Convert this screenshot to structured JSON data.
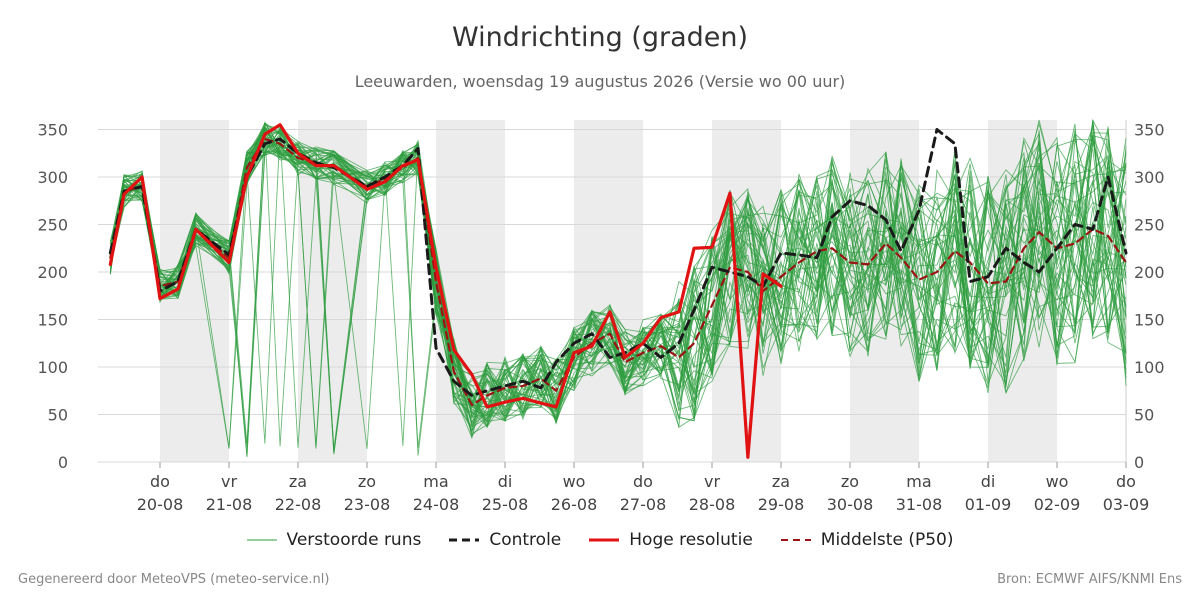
{
  "chart_data": {
    "type": "line",
    "title": "Windrichting (graden)",
    "subtitle": "Leeuwarden, woensdag 19 augustus 2026 (Versie wo 00 uur)",
    "y_ticks": [
      0,
      50,
      100,
      150,
      200,
      250,
      300,
      350
    ],
    "ylim": [
      0,
      350
    ],
    "x_day_ticks": [
      {
        "day": "do",
        "date": "20-08"
      },
      {
        "day": "vr",
        "date": "21-08"
      },
      {
        "day": "za",
        "date": "22-08"
      },
      {
        "day": "zo",
        "date": "23-08"
      },
      {
        "day": "ma",
        "date": "24-08"
      },
      {
        "day": "di",
        "date": "25-08"
      },
      {
        "day": "wo",
        "date": "26-08"
      },
      {
        "day": "do",
        "date": "27-08"
      },
      {
        "day": "vr",
        "date": "28-08"
      },
      {
        "day": "za",
        "date": "29-08"
      },
      {
        "day": "zo",
        "date": "30-08"
      },
      {
        "day": "ma",
        "date": "31-08"
      },
      {
        "day": "di",
        "date": "01-09"
      },
      {
        "day": "wo",
        "date": "02-09"
      },
      {
        "day": "do",
        "date": "03-09"
      }
    ],
    "series": [
      {
        "name": "Controle",
        "color": "#1a1a1a",
        "style": "dashed",
        "x": [
          -0.72,
          -0.52,
          -0.26,
          0,
          0.26,
          0.52,
          1,
          1.26,
          1.52,
          1.74,
          2,
          2.26,
          2.52,
          3,
          3.26,
          3.52,
          3.74,
          4,
          4.26,
          4.52,
          4.74,
          5,
          5.26,
          5.52,
          5.74,
          6,
          6.26,
          6.52,
          6.74,
          7,
          7.26,
          7.52,
          7.74,
          8,
          8.26,
          8.52,
          8.74,
          9,
          9.26,
          9.52,
          9.74,
          10,
          10.26,
          10.52,
          10.74,
          11,
          11.26,
          11.52,
          11.74,
          12,
          12.26,
          12.52,
          12.74,
          13,
          13.26,
          13.52,
          13.74,
          14
        ],
        "values": [
          220,
          285,
          290,
          180,
          190,
          245,
          218,
          300,
          335,
          340,
          325,
          315,
          310,
          290,
          300,
          312,
          330,
          120,
          85,
          70,
          75,
          80,
          85,
          78,
          105,
          125,
          135,
          110,
          115,
          125,
          110,
          125,
          160,
          205,
          200,
          195,
          185,
          220,
          218,
          215,
          258,
          275,
          270,
          255,
          222,
          265,
          350,
          335,
          190,
          195,
          225,
          210,
          200,
          225,
          250,
          245,
          300,
          220
        ],
        "values_note": ""
      },
      {
        "name": "Hoge resolutie",
        "color": "#e11212",
        "style": "solid",
        "x": [
          -0.72,
          -0.52,
          -0.26,
          0,
          0.26,
          0.52,
          1,
          1.26,
          1.52,
          1.74,
          2,
          2.26,
          2.52,
          3,
          3.26,
          3.52,
          3.74,
          4,
          4.26,
          4.52,
          4.74,
          5,
          5.26,
          5.52,
          5.74,
          6,
          6.26,
          6.52,
          6.74,
          7,
          7.26,
          7.52,
          7.74,
          8,
          8.26,
          8.52,
          8.74,
          9
        ],
        "values": [
          208,
          282,
          300,
          172,
          182,
          245,
          210,
          300,
          345,
          355,
          325,
          312,
          312,
          287,
          295,
          312,
          318,
          205,
          118,
          92,
          58,
          63,
          67,
          62,
          58,
          115,
          122,
          158,
          110,
          125,
          152,
          158,
          225,
          226,
          283,
          5,
          198,
          185
        ]
      },
      {
        "name": "Middelste (P50)",
        "color": "#9b1414",
        "style": "dashed",
        "x": [
          -0.72,
          -0.52,
          -0.26,
          0,
          0.26,
          0.52,
          1,
          1.26,
          1.52,
          1.74,
          2,
          2.26,
          2.52,
          3,
          3.26,
          3.52,
          3.74,
          4,
          4.26,
          4.52,
          4.74,
          5,
          5.26,
          5.52,
          5.74,
          6,
          6.26,
          6.52,
          6.74,
          7,
          7.26,
          7.52,
          7.74,
          8,
          8.26,
          8.52,
          8.74,
          9,
          9.26,
          9.52,
          9.74,
          10,
          10.26,
          10.52,
          10.74,
          11,
          11.26,
          11.52,
          11.74,
          12,
          12.26,
          12.52,
          12.74,
          13,
          13.26,
          13.52,
          13.74,
          14
        ],
        "values": [
          215,
          285,
          290,
          185,
          190,
          245,
          215,
          310,
          340,
          335,
          320,
          315,
          310,
          290,
          298,
          310,
          320,
          190,
          95,
          60,
          70,
          78,
          80,
          88,
          75,
          110,
          125,
          135,
          105,
          115,
          122,
          110,
          125,
          165,
          205,
          200,
          180,
          195,
          210,
          222,
          225,
          210,
          208,
          230,
          215,
          192,
          200,
          222,
          210,
          188,
          190,
          225,
          242,
          225,
          230,
          245,
          238,
          210
        ]
      },
      {
        "name": "Verstoorde runs",
        "color": "#2e9c3e",
        "style": "thin",
        "members": 50
      }
    ],
    "legend": [
      {
        "label": "Verstoorde runs",
        "color": "#2e9c3e",
        "style": "thin"
      },
      {
        "label": "Controle",
        "color": "#1a1a1a",
        "style": "dashed"
      },
      {
        "label": "Hoge resolutie",
        "color": "#e11212",
        "style": "solid"
      },
      {
        "label": "Middelste (P50)",
        "color": "#9b1414",
        "style": "dashed"
      }
    ],
    "weekend_bands": [
      0,
      2,
      4,
      6,
      8,
      10,
      12
    ],
    "grid": true
  },
  "footer": {
    "left": "Gegenereerd door MeteoVPS (meteo-service.nl)",
    "right": "Bron: ECMWF AIFS/KNMI Ens"
  }
}
